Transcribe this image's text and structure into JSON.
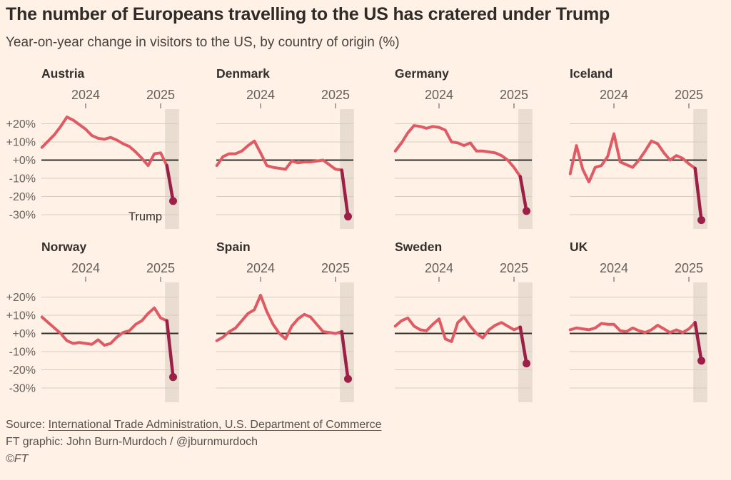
{
  "header": {
    "title": "The number of Europeans travelling to the US has cratered under Trump",
    "subtitle": "Year-on-year change in visitors to the US, by country of origin (%)"
  },
  "footer": {
    "source_prefix": "Source: ",
    "source_link": "International Trade Administration, U.S. Department of Commerce",
    "credit": "FT graphic: John Burn-Murdoch / @jburnmurdoch",
    "copyright": "©FT"
  },
  "chart_data": {
    "type": "line",
    "title": "Year-on-year change in visitors to the US, by country of origin (%)",
    "layout_hint": "4x2 small multiples, shared axes, y labels on first column only, grid on",
    "x_axis": {
      "tick_labels": [
        "2024",
        "2025"
      ],
      "tick_indices": [
        7,
        19
      ],
      "points_per_series": 22,
      "span_note": "monthly points, ticks mark start of 2024 and 2025"
    },
    "y_axis": {
      "ticks": [
        20,
        10,
        0,
        -10,
        -20,
        -30
      ],
      "tick_labels": [
        "+20%",
        "+10%",
        "+0%",
        "-10%",
        "-20%",
        "-30%"
      ],
      "ylim": [
        -35,
        26
      ]
    },
    "highlight_band": {
      "from_index": 19.7,
      "to_index": 21.95
    },
    "final_segment_from_index": 20,
    "annotation": {
      "series": "Austria",
      "text": "Trump"
    },
    "series": [
      {
        "name": "Austria",
        "values": [
          7,
          10.5,
          14,
          18.5,
          23.7,
          22,
          19.5,
          17,
          13.5,
          12,
          11.5,
          12.5,
          11,
          9,
          7.5,
          4.5,
          1,
          -3,
          3.5,
          4,
          -3,
          -22.5
        ]
      },
      {
        "name": "Denmark",
        "values": [
          -3,
          2,
          3.5,
          3.5,
          5,
          8,
          10.5,
          4,
          -3,
          -4,
          -4.5,
          -5,
          -0.5,
          -1.5,
          -1,
          -1,
          -0.5,
          0,
          -2.5,
          -5,
          -5.5,
          -31
        ]
      },
      {
        "name": "Germany",
        "values": [
          5,
          9.5,
          15,
          19,
          18.5,
          17.5,
          18.5,
          18,
          16.5,
          10,
          9.5,
          8,
          9.5,
          5,
          5,
          4.5,
          4,
          2.5,
          0,
          -4,
          -9,
          -28
        ]
      },
      {
        "name": "Iceland",
        "values": [
          -7.5,
          8,
          -5,
          -12,
          -4,
          -3,
          2,
          14.5,
          -1,
          -2.5,
          -4,
          0,
          5,
          10.5,
          9,
          4,
          0,
          2.5,
          1,
          -2,
          -4.5,
          -33
        ]
      },
      {
        "name": "Norway",
        "values": [
          9,
          6,
          3,
          0,
          -4,
          -5.5,
          -5,
          -5.5,
          -6,
          -3.5,
          -6.5,
          -5.5,
          -2,
          0.5,
          1.5,
          5,
          7,
          11,
          14,
          8.5,
          7,
          -24
        ]
      },
      {
        "name": "Spain",
        "values": [
          -4,
          -2,
          1,
          3,
          7,
          11,
          13,
          21,
          12,
          5,
          0,
          -3,
          4,
          8,
          10.5,
          9,
          5,
          1,
          0.5,
          0,
          1,
          -25
        ]
      },
      {
        "name": "Sweden",
        "values": [
          4,
          7,
          8.5,
          4,
          2,
          1.5,
          5,
          8,
          -3,
          -4.5,
          6,
          9,
          4,
          0,
          -2.5,
          2,
          4.5,
          6,
          4,
          2,
          3.5,
          -16.5
        ]
      },
      {
        "name": "UK",
        "values": [
          2,
          3,
          2.5,
          2,
          3,
          5.5,
          5,
          5,
          1.5,
          1,
          3,
          1.5,
          0.5,
          2,
          4.5,
          2.5,
          0.5,
          2,
          0.5,
          2.5,
          6,
          -15
        ]
      }
    ],
    "colors": {
      "background": "#fff1e5",
      "line": "#df5a63",
      "final_segment": "#9b1f46",
      "dot": "#9b1f46",
      "grid": "#d9ccbf",
      "zero_line": "#33302e",
      "band": "#e8ddd0",
      "axis_text": "#66605c",
      "tick_mark": "#8f8a84"
    }
  }
}
